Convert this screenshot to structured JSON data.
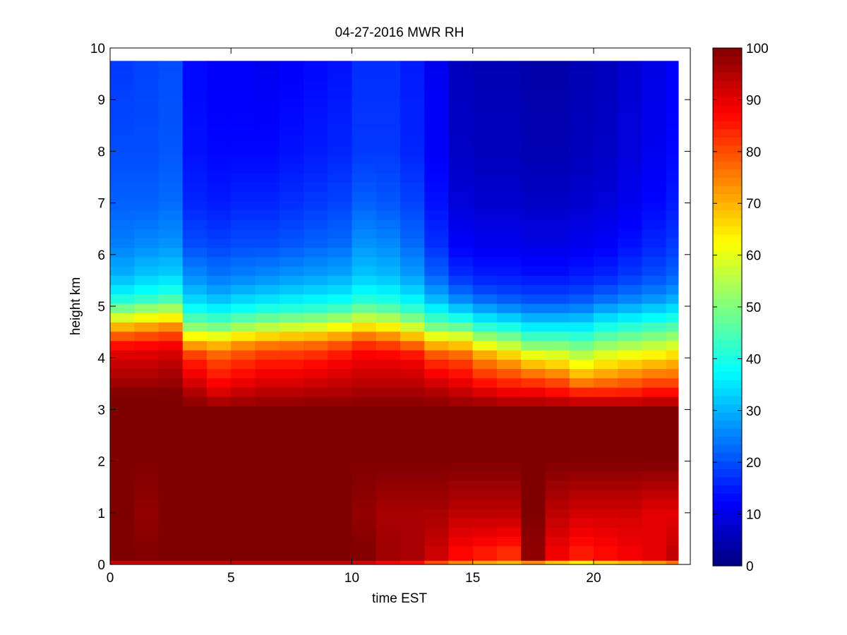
{
  "chart_data": {
    "type": "heatmap",
    "title": "04-27-2016 MWR RH",
    "xlabel": "time EST",
    "ylabel": "height km",
    "xlim": [
      0,
      24
    ],
    "ylim": [
      0,
      10
    ],
    "xticks": [
      0,
      5,
      10,
      15,
      20
    ],
    "yticks": [
      0,
      1,
      2,
      3,
      4,
      5,
      6,
      7,
      8,
      9,
      10
    ],
    "colorbar": {
      "min": 0,
      "max": 100,
      "ticks": [
        0,
        10,
        20,
        30,
        40,
        50,
        60,
        70,
        80,
        90,
        100
      ],
      "colormap": "jet"
    },
    "grid": false,
    "time_step_hours": 1,
    "time_start_hours": 0,
    "time_end_hours": 23.5,
    "height_top_km": 9.75,
    "profiles": [
      {
        "t": 0,
        "h": [
          0,
          0.1,
          1.0,
          2.0,
          3.0,
          3.3,
          3.6,
          4.0,
          4.3,
          4.6,
          4.9,
          5.2,
          5.6,
          6.2,
          7.0,
          8.0,
          9.8
        ],
        "rh": [
          88,
          100,
          100,
          100,
          100,
          100,
          96,
          92,
          85,
          70,
          52,
          38,
          30,
          25,
          22,
          20,
          18
        ]
      },
      {
        "t": 1,
        "h": [
          0,
          0.1,
          1.0,
          2.0,
          3.0,
          3.3,
          3.6,
          4.0,
          4.3,
          4.6,
          4.9,
          5.2,
          5.6,
          6.2,
          7.0,
          8.0,
          9.8
        ],
        "rh": [
          88,
          100,
          98,
          100,
          100,
          100,
          96,
          92,
          86,
          72,
          55,
          40,
          32,
          26,
          22,
          20,
          19
        ]
      },
      {
        "t": 2,
        "h": [
          0,
          0.1,
          1.0,
          2.0,
          3.0,
          3.3,
          3.6,
          4.0,
          4.3,
          4.6,
          4.9,
          5.2,
          5.6,
          6.2,
          7.0,
          8.0,
          9.8
        ],
        "rh": [
          88,
          100,
          100,
          100,
          100,
          100,
          97,
          93,
          87,
          74,
          57,
          42,
          33,
          27,
          23,
          21,
          20
        ]
      },
      {
        "t": 3,
        "h": [
          0,
          0.1,
          1.0,
          2.0,
          3.0,
          3.3,
          3.6,
          4.0,
          4.3,
          4.6,
          4.9,
          5.2,
          5.6,
          6.2,
          7.0,
          8.0,
          9.8
        ],
        "rh": [
          88,
          100,
          100,
          100,
          100,
          96,
          90,
          84,
          70,
          52,
          40,
          32,
          26,
          20,
          16,
          14,
          13
        ]
      },
      {
        "t": 4,
        "h": [
          0,
          0.1,
          1.0,
          2.0,
          3.0,
          3.3,
          3.6,
          4.0,
          4.3,
          4.6,
          4.9,
          5.2,
          5.6,
          6.2,
          7.0,
          8.0,
          9.8
        ],
        "rh": [
          88,
          100,
          100,
          100,
          100,
          92,
          86,
          80,
          68,
          50,
          38,
          30,
          24,
          19,
          15,
          13,
          12
        ]
      },
      {
        "t": 5,
        "h": [
          0,
          0.1,
          1.0,
          2.0,
          3.0,
          3.3,
          3.6,
          4.0,
          4.3,
          4.6,
          4.9,
          5.2,
          5.6,
          6.2,
          7.0,
          8.0,
          9.8
        ],
        "rh": [
          88,
          100,
          100,
          100,
          100,
          94,
          88,
          82,
          72,
          54,
          40,
          32,
          25,
          20,
          16,
          13,
          12
        ]
      },
      {
        "t": 6,
        "h": [
          0,
          0.1,
          1.0,
          2.0,
          3.0,
          3.3,
          3.6,
          4.0,
          4.3,
          4.6,
          4.9,
          5.2,
          5.6,
          6.2,
          7.0,
          8.0,
          9.8
        ],
        "rh": [
          88,
          100,
          100,
          100,
          100,
          95,
          90,
          84,
          74,
          56,
          42,
          33,
          26,
          20,
          16,
          13,
          11
        ]
      },
      {
        "t": 7,
        "h": [
          0,
          0.1,
          1.0,
          2.0,
          3.0,
          3.3,
          3.6,
          4.0,
          4.3,
          4.6,
          4.9,
          5.2,
          5.6,
          6.2,
          7.0,
          8.0,
          9.8
        ],
        "rh": [
          88,
          100,
          100,
          100,
          100,
          95,
          90,
          84,
          75,
          58,
          43,
          34,
          27,
          21,
          17,
          14,
          12
        ]
      },
      {
        "t": 8,
        "h": [
          0,
          0.1,
          1.0,
          2.0,
          3.0,
          3.3,
          3.6,
          4.0,
          4.3,
          4.6,
          4.9,
          5.2,
          5.6,
          6.2,
          7.0,
          8.0,
          9.8
        ],
        "rh": [
          88,
          100,
          100,
          100,
          100,
          96,
          91,
          85,
          76,
          59,
          44,
          35,
          28,
          22,
          18,
          15,
          13
        ]
      },
      {
        "t": 9,
        "h": [
          0,
          0.1,
          1.0,
          2.0,
          3.0,
          3.3,
          3.6,
          4.0,
          4.3,
          4.6,
          4.9,
          5.2,
          5.6,
          6.2,
          7.0,
          8.0,
          9.8
        ],
        "rh": [
          88,
          100,
          100,
          100,
          100,
          96,
          92,
          87,
          78,
          62,
          46,
          36,
          29,
          23,
          19,
          16,
          14
        ]
      },
      {
        "t": 10,
        "h": [
          0,
          0.1,
          1.0,
          2.0,
          3.0,
          3.3,
          3.6,
          4.0,
          4.3,
          4.6,
          4.9,
          5.2,
          5.6,
          6.2,
          7.0,
          8.0,
          9.8
        ],
        "rh": [
          86,
          100,
          98,
          100,
          100,
          97,
          93,
          89,
          82,
          66,
          50,
          39,
          32,
          27,
          22,
          18,
          17
        ]
      },
      {
        "t": 11,
        "h": [
          0,
          0.1,
          1.0,
          2.0,
          3.0,
          3.3,
          3.6,
          4.0,
          4.3,
          4.6,
          4.9,
          5.2,
          5.6,
          6.2,
          7.0,
          8.0,
          9.8
        ],
        "rh": [
          82,
          97,
          96,
          100,
          100,
          97,
          93,
          89,
          80,
          64,
          48,
          38,
          31,
          26,
          21,
          18,
          17
        ]
      },
      {
        "t": 12,
        "h": [
          0,
          0.1,
          1.0,
          2.0,
          3.0,
          3.3,
          3.6,
          4.0,
          4.3,
          4.6,
          4.9,
          5.2,
          5.6,
          6.2,
          7.0,
          8.0,
          9.8
        ],
        "rh": [
          80,
          96,
          96,
          100,
          100,
          97,
          93,
          88,
          76,
          58,
          44,
          35,
          28,
          23,
          19,
          16,
          15
        ]
      },
      {
        "t": 13,
        "h": [
          0,
          0.1,
          1.0,
          2.0,
          3.0,
          3.3,
          3.6,
          4.0,
          4.3,
          4.6,
          4.9,
          5.2,
          5.6,
          6.2,
          7.0,
          8.0,
          9.8
        ],
        "rh": [
          72,
          92,
          96,
          100,
          100,
          96,
          90,
          82,
          68,
          50,
          38,
          29,
          22,
          17,
          14,
          12,
          11
        ]
      },
      {
        "t": 14,
        "h": [
          0,
          0.1,
          1.0,
          2.0,
          3.0,
          3.3,
          3.6,
          4.0,
          4.3,
          4.6,
          4.9,
          5.2,
          5.6,
          6.2,
          7.0,
          8.0,
          9.8
        ],
        "rh": [
          66,
          86,
          94,
          100,
          100,
          94,
          88,
          80,
          66,
          48,
          34,
          24,
          17,
          12,
          9,
          7,
          6
        ]
      },
      {
        "t": 15,
        "h": [
          0,
          0.1,
          1.0,
          2.0,
          3.0,
          3.3,
          3.6,
          4.0,
          4.3,
          4.6,
          4.9,
          5.2,
          5.6,
          6.2,
          7.0,
          8.0,
          9.8
        ],
        "rh": [
          62,
          84,
          94,
          100,
          100,
          92,
          84,
          74,
          58,
          42,
          30,
          21,
          15,
          11,
          8,
          6,
          5
        ]
      },
      {
        "t": 16,
        "h": [
          0,
          0.1,
          1.0,
          2.0,
          3.0,
          3.3,
          3.6,
          4.0,
          4.3,
          4.6,
          4.9,
          5.2,
          5.6,
          6.2,
          7.0,
          8.0,
          9.8
        ],
        "rh": [
          60,
          82,
          94,
          100,
          100,
          90,
          82,
          70,
          54,
          40,
          28,
          20,
          15,
          11,
          8,
          6,
          5
        ]
      },
      {
        "t": 17,
        "h": [
          0,
          0.1,
          1.0,
          2.0,
          3.0,
          3.3,
          3.6,
          4.0,
          4.3,
          4.6,
          4.9,
          5.2,
          5.6,
          6.2,
          7.0,
          8.0,
          9.8
        ],
        "rh": [
          58,
          98,
          100,
          100,
          100,
          90,
          80,
          64,
          48,
          36,
          26,
          19,
          14,
          10,
          7,
          5,
          4
        ]
      },
      {
        "t": 18,
        "h": [
          0,
          0.1,
          1.0,
          2.0,
          3.0,
          3.3,
          3.6,
          4.0,
          4.3,
          4.6,
          4.9,
          5.2,
          5.6,
          6.2,
          7.0,
          8.0,
          9.8
        ],
        "rh": [
          54,
          88,
          94,
          100,
          100,
          88,
          78,
          62,
          48,
          36,
          26,
          19,
          14,
          10,
          7,
          5,
          4
        ]
      },
      {
        "t": 19,
        "h": [
          0,
          0.1,
          1.0,
          2.0,
          3.0,
          3.3,
          3.6,
          4.0,
          4.3,
          4.6,
          4.9,
          5.2,
          5.6,
          6.2,
          7.0,
          8.0,
          9.8
        ],
        "rh": [
          50,
          84,
          92,
          100,
          100,
          86,
          72,
          58,
          46,
          36,
          27,
          20,
          15,
          11,
          8,
          6,
          5
        ]
      },
      {
        "t": 20,
        "h": [
          0,
          0.1,
          1.0,
          2.0,
          3.0,
          3.3,
          3.6,
          4.0,
          4.3,
          4.6,
          4.9,
          5.2,
          5.6,
          6.2,
          7.0,
          8.0,
          9.8
        ],
        "rh": [
          54,
          86,
          92,
          100,
          100,
          86,
          74,
          62,
          50,
          40,
          30,
          22,
          16,
          12,
          9,
          7,
          6
        ]
      },
      {
        "t": 21,
        "h": [
          0,
          0.1,
          1.0,
          2.0,
          3.0,
          3.3,
          3.6,
          4.0,
          4.3,
          4.6,
          4.9,
          5.2,
          5.6,
          6.2,
          7.0,
          8.0,
          9.8
        ],
        "rh": [
          56,
          88,
          92,
          100,
          100,
          86,
          76,
          64,
          52,
          42,
          32,
          24,
          18,
          14,
          11,
          9,
          8
        ]
      },
      {
        "t": 22,
        "h": [
          0,
          0.1,
          1.0,
          2.0,
          3.0,
          3.3,
          3.6,
          4.0,
          4.3,
          4.6,
          4.9,
          5.2,
          5.6,
          6.2,
          7.0,
          8.0,
          9.8
        ],
        "rh": [
          60,
          90,
          90,
          100,
          100,
          88,
          78,
          66,
          54,
          44,
          34,
          26,
          20,
          16,
          13,
          11,
          10
        ]
      },
      {
        "t": 23,
        "h": [
          0,
          0.1,
          1.0,
          2.0,
          3.0,
          3.3,
          3.6,
          4.0,
          4.3,
          4.6,
          4.9,
          5.2,
          5.6,
          6.2,
          7.0,
          8.0,
          9.8
        ],
        "rh": [
          64,
          94,
          90,
          100,
          100,
          88,
          78,
          68,
          56,
          46,
          36,
          28,
          22,
          18,
          15,
          13,
          12
        ]
      }
    ]
  }
}
